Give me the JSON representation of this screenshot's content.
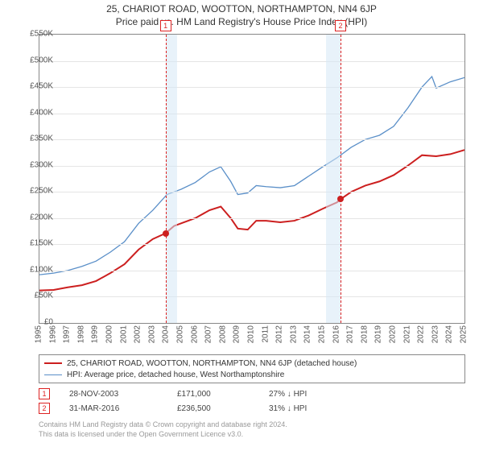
{
  "title_line1": "25, CHARIOT ROAD, WOOTTON, NORTHAMPTON, NN4 6JP",
  "title_line2": "Price paid vs. HM Land Registry's House Price Index (HPI)",
  "chart": {
    "type": "line",
    "background_color": "#ffffff",
    "grid_color": "#e5e5e5",
    "border_color": "#888888",
    "ylim": [
      0,
      550
    ],
    "ytick_step": 50,
    "ytick_labels": [
      "£0",
      "£50K",
      "£100K",
      "£150K",
      "£200K",
      "£250K",
      "£300K",
      "£350K",
      "£400K",
      "£450K",
      "£500K",
      "£550K"
    ],
    "x_years": [
      1995,
      1996,
      1997,
      1998,
      1999,
      2000,
      2001,
      2002,
      2003,
      2004,
      2005,
      2006,
      2007,
      2008,
      2009,
      2010,
      2011,
      2012,
      2013,
      2014,
      2015,
      2016,
      2017,
      2018,
      2019,
      2020,
      2021,
      2022,
      2023,
      2024,
      2025
    ],
    "shaded_bands": [
      {
        "start": 2003.9,
        "end": 2004.7,
        "color": "#d6e8f5"
      },
      {
        "start": 2015.25,
        "end": 2016.25,
        "color": "#d6e8f5"
      }
    ],
    "vdash": [
      {
        "x": 2003.9,
        "color": "#d22",
        "marker": "1"
      },
      {
        "x": 2016.25,
        "color": "#d22",
        "marker": "2"
      }
    ],
    "series": [
      {
        "name": "price_paid",
        "label": "25, CHARIOT ROAD, WOOTTON, NORTHAMPTON, NN4 6JP (detached house)",
        "color": "#cc1f1f",
        "width": 2,
        "data": [
          [
            1995,
            62
          ],
          [
            1996,
            63
          ],
          [
            1997,
            68
          ],
          [
            1998,
            72
          ],
          [
            1999,
            80
          ],
          [
            2000,
            95
          ],
          [
            2001,
            112
          ],
          [
            2002,
            140
          ],
          [
            2003,
            160
          ],
          [
            2003.9,
            171
          ],
          [
            2004.5,
            185
          ],
          [
            2005,
            190
          ],
          [
            2006,
            200
          ],
          [
            2007,
            215
          ],
          [
            2007.8,
            222
          ],
          [
            2008.5,
            200
          ],
          [
            2009,
            180
          ],
          [
            2009.7,
            178
          ],
          [
            2010.3,
            195
          ],
          [
            2011,
            195
          ],
          [
            2012,
            192
          ],
          [
            2013,
            195
          ],
          [
            2014,
            205
          ],
          [
            2015,
            218
          ],
          [
            2016,
            230
          ],
          [
            2016.25,
            236
          ],
          [
            2017,
            250
          ],
          [
            2018,
            262
          ],
          [
            2019,
            270
          ],
          [
            2020,
            282
          ],
          [
            2021,
            300
          ],
          [
            2022,
            320
          ],
          [
            2023,
            318
          ],
          [
            2024,
            322
          ],
          [
            2025,
            330
          ]
        ]
      },
      {
        "name": "hpi",
        "label": "HPI: Average price, detached house, West Northamptonshire",
        "color": "#5a8fc8",
        "width": 1.3,
        "data": [
          [
            1995,
            92
          ],
          [
            1996,
            95
          ],
          [
            1997,
            100
          ],
          [
            1998,
            108
          ],
          [
            1999,
            118
          ],
          [
            2000,
            135
          ],
          [
            2001,
            155
          ],
          [
            2002,
            190
          ],
          [
            2003,
            215
          ],
          [
            2004,
            245
          ],
          [
            2005,
            255
          ],
          [
            2006,
            268
          ],
          [
            2007,
            288
          ],
          [
            2007.8,
            298
          ],
          [
            2008.5,
            270
          ],
          [
            2009,
            245
          ],
          [
            2009.7,
            248
          ],
          [
            2010.3,
            262
          ],
          [
            2011,
            260
          ],
          [
            2012,
            258
          ],
          [
            2013,
            262
          ],
          [
            2014,
            280
          ],
          [
            2015,
            298
          ],
          [
            2016,
            315
          ],
          [
            2017,
            335
          ],
          [
            2018,
            350
          ],
          [
            2019,
            358
          ],
          [
            2020,
            375
          ],
          [
            2021,
            410
          ],
          [
            2022,
            450
          ],
          [
            2022.7,
            470
          ],
          [
            2023,
            448
          ],
          [
            2024,
            460
          ],
          [
            2025,
            468
          ]
        ]
      }
    ],
    "sale_points": [
      {
        "x": 2003.9,
        "y": 171,
        "color": "#cc1f1f"
      },
      {
        "x": 2016.25,
        "y": 236,
        "color": "#cc1f1f"
      }
    ]
  },
  "legend": {
    "items": [
      {
        "color": "#cc1f1f",
        "width": 2,
        "label": "25, CHARIOT ROAD, WOOTTON, NORTHAMPTON, NN4 6JP (detached house)"
      },
      {
        "color": "#5a8fc8",
        "width": 1.3,
        "label": "HPI: Average price, detached house, West Northamptonshire"
      }
    ]
  },
  "sales_table": [
    {
      "n": "1",
      "color": "#d22",
      "date": "28-NOV-2003",
      "price": "£171,000",
      "delta": "27% ↓ HPI"
    },
    {
      "n": "2",
      "color": "#d22",
      "date": "31-MAR-2016",
      "price": "£236,500",
      "delta": "31% ↓ HPI"
    }
  ],
  "footer_line1": "Contains HM Land Registry data © Crown copyright and database right 2024.",
  "footer_line2": "This data is licensed under the Open Government Licence v3.0."
}
